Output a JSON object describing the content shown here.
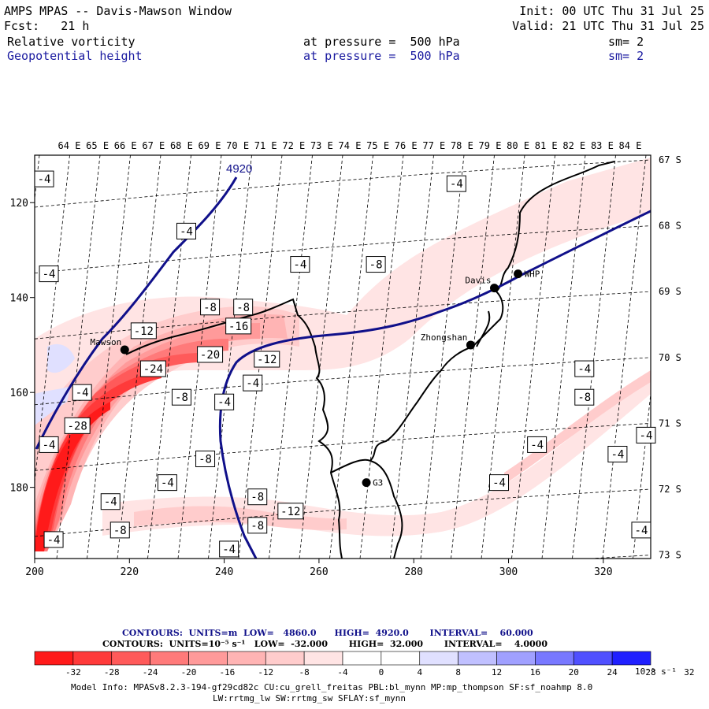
{
  "header": {
    "title": "AMPS MPAS -- Davis-Mawson Window",
    "init": "Init: 00 UTC Thu 31 Jul 25",
    "fcst": "Fcst:   21 h",
    "valid": "Valid: 21 UTC Thu 31 Jul 25",
    "field1": {
      "name": "Relative vorticity",
      "pressure": "at pressure =  500 hPa",
      "sm": "sm= 2"
    },
    "field2": {
      "name": "Geopotential height",
      "pressure": "at pressure =  500 hPa",
      "sm": "sm= 2"
    }
  },
  "colors": {
    "neg": [
      "#ff1a1a",
      "#ff3a3a",
      "#ff5a5a",
      "#ff7a7a",
      "#ff9a9a",
      "#ffb4b4",
      "#ffcccc",
      "#ffe4e4"
    ],
    "pos": [
      "#ffffff",
      "#ffffff",
      "#e0e0ff",
      "#c0c0ff",
      "#a0a0ff",
      "#7878ff",
      "#5050ff",
      "#2020ff"
    ],
    "height_contour": "#10108a",
    "coast": "#000000"
  },
  "chart_data": {
    "type": "heatmap",
    "x_ticks": [
      200,
      220,
      240,
      260,
      280,
      300,
      320
    ],
    "y_ticks": [
      120,
      140,
      160,
      180
    ],
    "xlim": [
      200,
      330
    ],
    "ylim": [
      195,
      110
    ],
    "lon_labels": [
      "64 E",
      "65 E",
      "66 E",
      "67 E",
      "68 E",
      "69 E",
      "70 E",
      "71 E",
      "72 E",
      "73 E",
      "74 E",
      "75 E",
      "76 E",
      "77 E",
      "78 E",
      "79 E",
      "80 E",
      "81 E",
      "82 E",
      "83 E",
      "84 E"
    ],
    "lat_labels": [
      "67 S",
      "68 S",
      "69 S",
      "70 S",
      "71 S",
      "72 S",
      "73 S"
    ],
    "stations": [
      {
        "name": "Mawson",
        "x": 219,
        "y": 151
      },
      {
        "name": "Davis",
        "x": 297,
        "y": 138
      },
      {
        "name": "WHP",
        "x": 302,
        "y": 135
      },
      {
        "name": "Zhongshan",
        "x": 292,
        "y": 150
      },
      {
        "name": "G3",
        "x": 270,
        "y": 179
      }
    ],
    "height_contour_label": "4920",
    "vorticity_labels": [
      {
        "text": "-4",
        "x": 202,
        "y": 115
      },
      {
        "text": "-4",
        "x": 232,
        "y": 126
      },
      {
        "text": "-4",
        "x": 203,
        "y": 135
      },
      {
        "text": "-4",
        "x": 256,
        "y": 133
      },
      {
        "text": "-8",
        "x": 272,
        "y": 133
      },
      {
        "text": "-4",
        "x": 289,
        "y": 116
      },
      {
        "text": "-8",
        "x": 237,
        "y": 142
      },
      {
        "text": "-8",
        "x": 244,
        "y": 142
      },
      {
        "text": "-12",
        "x": 223,
        "y": 147
      },
      {
        "text": "-16",
        "x": 243,
        "y": 146
      },
      {
        "text": "-20",
        "x": 237,
        "y": 152
      },
      {
        "text": "-12",
        "x": 249,
        "y": 153
      },
      {
        "text": "-24",
        "x": 225,
        "y": 155
      },
      {
        "text": "-4",
        "x": 246,
        "y": 158
      },
      {
        "text": "-4",
        "x": 210,
        "y": 160
      },
      {
        "text": "-8",
        "x": 231,
        "y": 161
      },
      {
        "text": "-4",
        "x": 240,
        "y": 162
      },
      {
        "text": "-28",
        "x": 209,
        "y": 167
      },
      {
        "text": "-4",
        "x": 203,
        "y": 171
      },
      {
        "text": "-8",
        "x": 236,
        "y": 174
      },
      {
        "text": "-4",
        "x": 228,
        "y": 179
      },
      {
        "text": "-4",
        "x": 216,
        "y": 183
      },
      {
        "text": "-8",
        "x": 247,
        "y": 182
      },
      {
        "text": "-12",
        "x": 254,
        "y": 185
      },
      {
        "text": "-8",
        "x": 218,
        "y": 189
      },
      {
        "text": "-8",
        "x": 247,
        "y": 188
      },
      {
        "text": "-4",
        "x": 204,
        "y": 191
      },
      {
        "text": "-4",
        "x": 241,
        "y": 193
      },
      {
        "text": "-4",
        "x": 316,
        "y": 155
      },
      {
        "text": "-8",
        "x": 316,
        "y": 161
      },
      {
        "text": "-4",
        "x": 306,
        "y": 171
      },
      {
        "text": "-4",
        "x": 329,
        "y": 169
      },
      {
        "text": "-4",
        "x": 323,
        "y": 173
      },
      {
        "text": "-4",
        "x": 298,
        "y": 179
      },
      {
        "text": "-4",
        "x": 328,
        "y": 189
      }
    ],
    "contour_info_height": {
      "text": "CONTOURS:  UNITS=m  LOW=   4860.0      HIGH=  4920.0       INTERVAL=    60.000"
    },
    "contour_info_vort": {
      "text": "CONTOURS:  UNITS=10⁻⁵ s⁻¹   LOW=  -32.000       HIGH=  32.000       INTERVAL=    4.0000"
    },
    "colorbar_ticks": [
      "-32",
      "-28",
      "-24",
      "-20",
      "-16",
      "-12",
      "-8",
      "-4",
      "0",
      "4",
      "8",
      "12",
      "16",
      "20",
      "24",
      "28",
      "32"
    ],
    "colorbar_unit": "10⁻⁵ s⁻¹"
  },
  "model_info": {
    "line1": "Model Info: MPASv8.2.3-194-gf29cd82c CU:cu_grell_freitas PBL:bl_mynn MP:mp_thompson SF:sf_noahmp 8.0",
    "line2": "LW:rrtmg_lw SW:rrtmg_sw SFLAY:sf_mynn"
  }
}
